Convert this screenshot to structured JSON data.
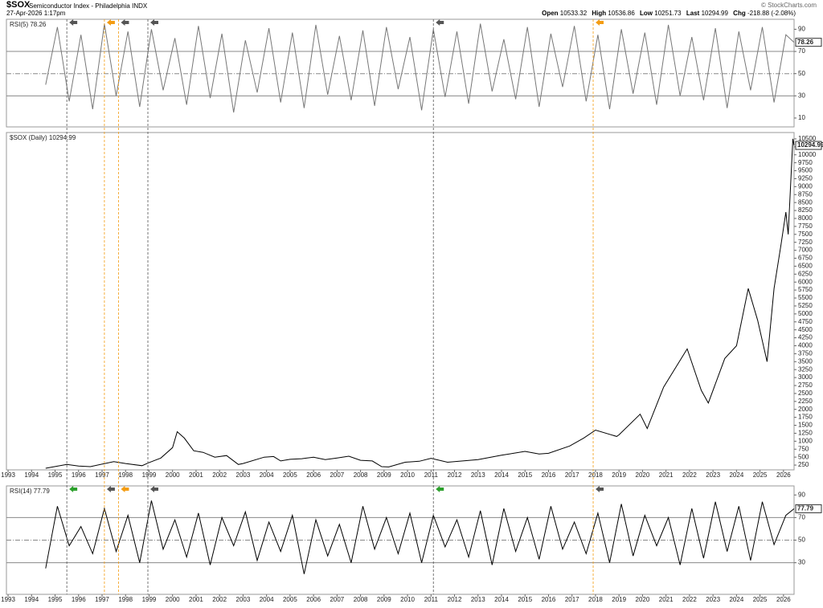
{
  "header": {
    "symbol": "$SOX",
    "name": "Semiconductor Index - Philadelphia",
    "exchange": "INDX",
    "date": "27-Apr-2026 1:17pm",
    "open_label": "Open",
    "open": "10533.32",
    "high_label": "High",
    "high": "10536.86",
    "low_label": "Low",
    "low": "10251.73",
    "last_label": "Last",
    "last": "10294.99",
    "chg_label": "Chg",
    "chg": "-218.88 (-2.08%)",
    "credit": "© StockCharts.com"
  },
  "markers": [
    {
      "x": 1995.5,
      "color": "#555555"
    },
    {
      "x": 1997.1,
      "color": "#f39c12"
    },
    {
      "x": 1997.7,
      "color": "#f39c12"
    },
    {
      "x": 1998.95,
      "color": "#555555"
    },
    {
      "x": 2011.1,
      "color": "#555555"
    },
    {
      "x": 2017.9,
      "color": "#f39c12"
    }
  ],
  "chart_data": [
    {
      "type": "line",
      "title": "RSI(5)",
      "last": 78.26,
      "color": "#777777",
      "xlim": [
        1992.93,
        2026.45
      ],
      "ylim": [
        2,
        99
      ],
      "yticks": [
        10,
        30,
        50,
        70,
        90
      ],
      "levels": [
        30,
        50,
        70
      ],
      "arrow_colors": [
        "#555555",
        "#f39c12",
        "#555555",
        "#555555",
        "#555555",
        "#f39c12"
      ],
      "series": [
        {
          "name": "RSI(5)",
          "color": "#777777",
          "x": [
            1994.6,
            1995.1,
            1995.6,
            1996.1,
            1996.6,
            1997.1,
            1997.6,
            1998.1,
            1998.6,
            1999.1,
            1999.6,
            2000.1,
            2000.6,
            2001.1,
            2001.6,
            2002.1,
            2002.6,
            2003.1,
            2003.6,
            2004.1,
            2004.6,
            2005.1,
            2005.6,
            2006.1,
            2006.6,
            2007.1,
            2007.6,
            2008.1,
            2008.6,
            2009.1,
            2009.6,
            2010.1,
            2010.6,
            2011.1,
            2011.6,
            2012.1,
            2012.6,
            2013.1,
            2013.6,
            2014.1,
            2014.6,
            2015.1,
            2015.6,
            2016.1,
            2016.6,
            2017.1,
            2017.6,
            2018.1,
            2018.6,
            2019.1,
            2019.6,
            2020.1,
            2020.6,
            2021.1,
            2021.6,
            2022.1,
            2022.6,
            2023.1,
            2023.6,
            2024.1,
            2024.6,
            2025.1,
            2025.6,
            2026.1,
            2026.45
          ],
          "values": [
            40,
            92,
            25,
            85,
            18,
            95,
            30,
            88,
            20,
            90,
            35,
            82,
            22,
            93,
            28,
            86,
            15,
            80,
            33,
            91,
            24,
            87,
            19,
            94,
            31,
            84,
            26,
            89,
            21,
            92,
            36,
            83,
            17,
            90,
            29,
            88,
            23,
            95,
            34,
            81,
            27,
            92,
            20,
            86,
            38,
            93,
            25,
            85,
            18,
            90,
            32,
            87,
            22,
            94,
            30,
            83,
            26,
            91,
            19,
            88,
            35,
            92,
            24,
            85,
            78.26
          ]
        }
      ]
    },
    {
      "type": "line",
      "title": "$SOX (Daily)",
      "last": 10294.99,
      "color": "#000000",
      "xaxis": true,
      "xlim": [
        1992.93,
        2026.45
      ],
      "ylim": [
        100,
        10700
      ],
      "yticks": [
        250,
        500,
        750,
        1000,
        1250,
        1500,
        1750,
        2000,
        2250,
        2500,
        2750,
        3000,
        3250,
        3500,
        3750,
        4000,
        4250,
        4500,
        4750,
        5000,
        5250,
        5500,
        5750,
        6000,
        6250,
        6500,
        6750,
        7000,
        7250,
        7500,
        7750,
        8000,
        8250,
        8500,
        8750,
        9000,
        9250,
        9500,
        9750,
        10000,
        10250,
        10500
      ],
      "xticks": [
        1993,
        1994,
        1995,
        1996,
        1997,
        1998,
        1999,
        2000,
        2001,
        2002,
        2003,
        2004,
        2005,
        2006,
        2007,
        2008,
        2009,
        2010,
        2011,
        2012,
        2013,
        2014,
        2015,
        2016,
        2017,
        2018,
        2019,
        2020,
        2021,
        2022,
        2023,
        2024,
        2025,
        2026
      ],
      "series": [
        {
          "name": "$SOX",
          "color": "#000000",
          "x": [
            1994.6,
            1995.5,
            1996.0,
            1996.5,
            1997.5,
            1998.0,
            1998.7,
            1999.0,
            1999.5,
            2000.0,
            2000.2,
            2000.5,
            2000.9,
            2001.3,
            2001.8,
            2002.3,
            2002.8,
            2003.0,
            2003.9,
            2004.3,
            2004.6,
            2005.0,
            2005.5,
            2006.0,
            2006.5,
            2007.0,
            2007.5,
            2008.0,
            2008.5,
            2008.9,
            2009.2,
            2009.9,
            2010.5,
            2011.0,
            2011.7,
            2012.5,
            2013.0,
            2014.0,
            2015.0,
            2015.6,
            2016.0,
            2016.9,
            2017.5,
            2018.0,
            2018.9,
            2019.0,
            2019.9,
            2020.2,
            2020.9,
            2021.9,
            2022.5,
            2022.8,
            2023.5,
            2024.0,
            2024.5,
            2024.9,
            2025.3,
            2025.6,
            2025.9,
            2026.1,
            2026.2,
            2026.4,
            2026.45
          ],
          "values": [
            150,
            270,
            220,
            200,
            360,
            300,
            230,
            330,
            470,
            800,
            1300,
            1100,
            700,
            650,
            500,
            550,
            270,
            300,
            500,
            520,
            380,
            430,
            450,
            500,
            420,
            470,
            530,
            400,
            380,
            200,
            190,
            340,
            370,
            460,
            340,
            390,
            420,
            560,
            680,
            600,
            620,
            850,
            1100,
            1350,
            1150,
            1200,
            1850,
            1400,
            2700,
            3900,
            2600,
            2200,
            3600,
            4000,
            5800,
            4800,
            3500,
            5800,
            7200,
            8200,
            7500,
            10500,
            10294.99
          ]
        }
      ]
    },
    {
      "type": "line",
      "title": "RSI(14)",
      "last": 77.79,
      "color": "#000000",
      "xaxis": true,
      "xlim": [
        1992.93,
        2026.45
      ],
      "ylim": [
        2,
        98
      ],
      "yticks": [
        30,
        50,
        70,
        90
      ],
      "levels": [
        30,
        50,
        70
      ],
      "arrow_colors": [
        "#2ca02c",
        "#555555",
        "#f39c12",
        "#555555",
        "#2ca02c",
        "#555555"
      ],
      "xticks": [
        1993,
        1994,
        1995,
        1996,
        1997,
        1998,
        1999,
        2000,
        2001,
        2002,
        2003,
        2004,
        2005,
        2006,
        2007,
        2008,
        2009,
        2010,
        2011,
        2012,
        2013,
        2014,
        2015,
        2016,
        2017,
        2018,
        2019,
        2020,
        2021,
        2022,
        2023,
        2024,
        2025,
        2026
      ],
      "series": [
        {
          "name": "RSI(14)",
          "color": "#000000",
          "x": [
            1994.6,
            1995.1,
            1995.6,
            1996.1,
            1996.6,
            1997.1,
            1997.6,
            1998.1,
            1998.6,
            1999.1,
            1999.6,
            2000.1,
            2000.6,
            2001.1,
            2001.6,
            2002.1,
            2002.6,
            2003.1,
            2003.6,
            2004.1,
            2004.6,
            2005.1,
            2005.6,
            2006.1,
            2006.6,
            2007.1,
            2007.6,
            2008.1,
            2008.6,
            2009.1,
            2009.6,
            2010.1,
            2010.6,
            2011.1,
            2011.6,
            2012.1,
            2012.6,
            2013.1,
            2013.6,
            2014.1,
            2014.6,
            2015.1,
            2015.6,
            2016.1,
            2016.6,
            2017.1,
            2017.6,
            2018.1,
            2018.6,
            2019.1,
            2019.6,
            2020.1,
            2020.6,
            2021.1,
            2021.6,
            2022.1,
            2022.6,
            2023.1,
            2023.6,
            2024.1,
            2024.6,
            2025.1,
            2025.6,
            2026.1,
            2026.45
          ],
          "values": [
            25,
            80,
            45,
            62,
            38,
            78,
            40,
            72,
            30,
            85,
            42,
            68,
            35,
            74,
            28,
            70,
            45,
            75,
            32,
            66,
            40,
            72,
            20,
            68,
            36,
            64,
            30,
            80,
            42,
            70,
            38,
            74,
            30,
            72,
            44,
            68,
            35,
            76,
            28,
            78,
            40,
            70,
            33,
            80,
            42,
            66,
            38,
            74,
            30,
            82,
            36,
            72,
            45,
            70,
            28,
            78,
            34,
            84,
            40,
            80,
            32,
            84,
            46,
            72,
            77.79
          ]
        }
      ]
    }
  ]
}
